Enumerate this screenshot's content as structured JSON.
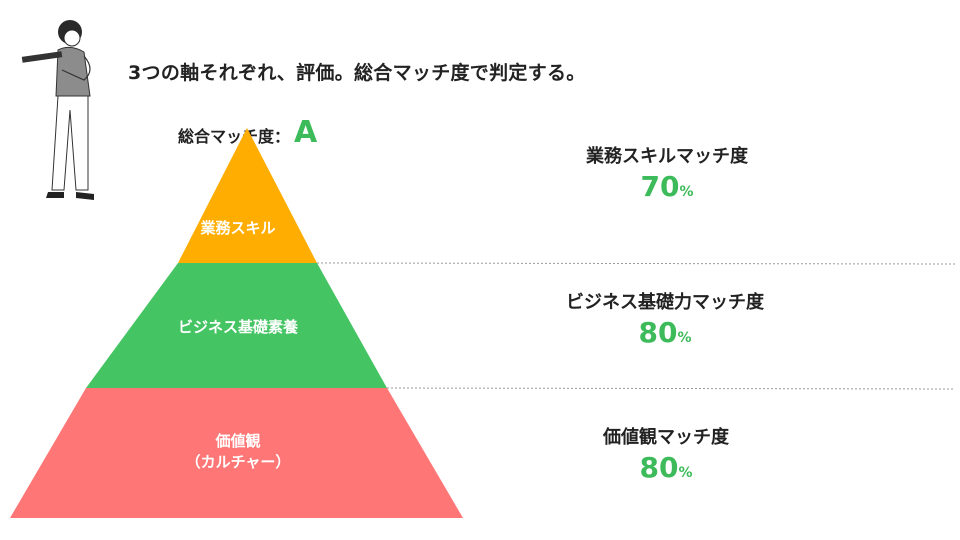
{
  "headline": "3つの軸それぞれ、評価。総合マッチ度で判定する。",
  "overall": {
    "label": "総合マッチ度：",
    "grade": "A"
  },
  "tiers": [
    {
      "label": "業務スキル",
      "color": "#ffad00"
    },
    {
      "label": "ビジネス基礎素養",
      "color": "#45c463"
    },
    {
      "label": "価値観",
      "sub": "（カルチャー）",
      "color": "#ff7676"
    }
  ],
  "scores": [
    {
      "title": "業務スキルマッチ度",
      "value": "70",
      "unit": "%"
    },
    {
      "title": "ビジネス基礎力マッチ度",
      "value": "80",
      "unit": "%"
    },
    {
      "title": "価値観マッチ度",
      "value": "80",
      "unit": "%"
    }
  ],
  "colors": {
    "accent": "#3dbb5a"
  }
}
